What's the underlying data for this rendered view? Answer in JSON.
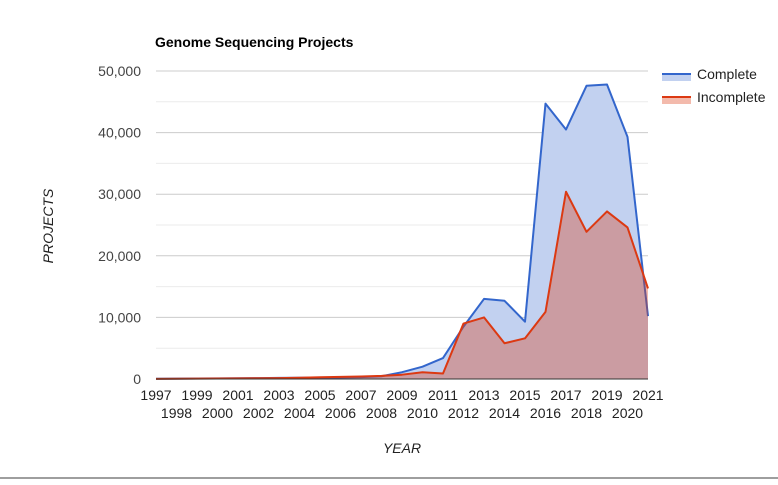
{
  "chart_data": {
    "type": "area",
    "title": "Genome Sequencing Projects",
    "xlabel": "YEAR",
    "ylabel": "PROJECTS",
    "x": [
      "1997",
      "1998",
      "1999",
      "2000",
      "2001",
      "2002",
      "2003",
      "2004",
      "2005",
      "2006",
      "2007",
      "2008",
      "2009",
      "2010",
      "2011",
      "2012",
      "2013",
      "2014",
      "2015",
      "2016",
      "2017",
      "2018",
      "2019",
      "2020",
      "2021"
    ],
    "ylim": [
      0,
      50000
    ],
    "yticks": [
      "0",
      "10,000",
      "20,000",
      "30,000",
      "40,000",
      "50,000"
    ],
    "ytick_values": [
      0,
      10000,
      20000,
      30000,
      40000,
      50000
    ],
    "grid": true,
    "legend_position": "top-right",
    "series": [
      {
        "name": "Complete",
        "color": "#3366cc",
        "fill": "#c2d1f0",
        "values": [
          50,
          60,
          80,
          100,
          120,
          150,
          180,
          200,
          220,
          250,
          300,
          450,
          1100,
          2000,
          3400,
          8500,
          13000,
          12700,
          9300,
          44700,
          40500,
          47600,
          47800,
          39300,
          10200
        ]
      },
      {
        "name": "Incomplete",
        "color": "#dc3912",
        "fill": "rgba(220,57,18,0.35)",
        "values": [
          30,
          40,
          60,
          90,
          100,
          120,
          150,
          200,
          280,
          350,
          400,
          500,
          700,
          1100,
          900,
          9000,
          10000,
          5800,
          6600,
          10900,
          30400,
          23900,
          27200,
          24600,
          14700
        ]
      }
    ]
  }
}
